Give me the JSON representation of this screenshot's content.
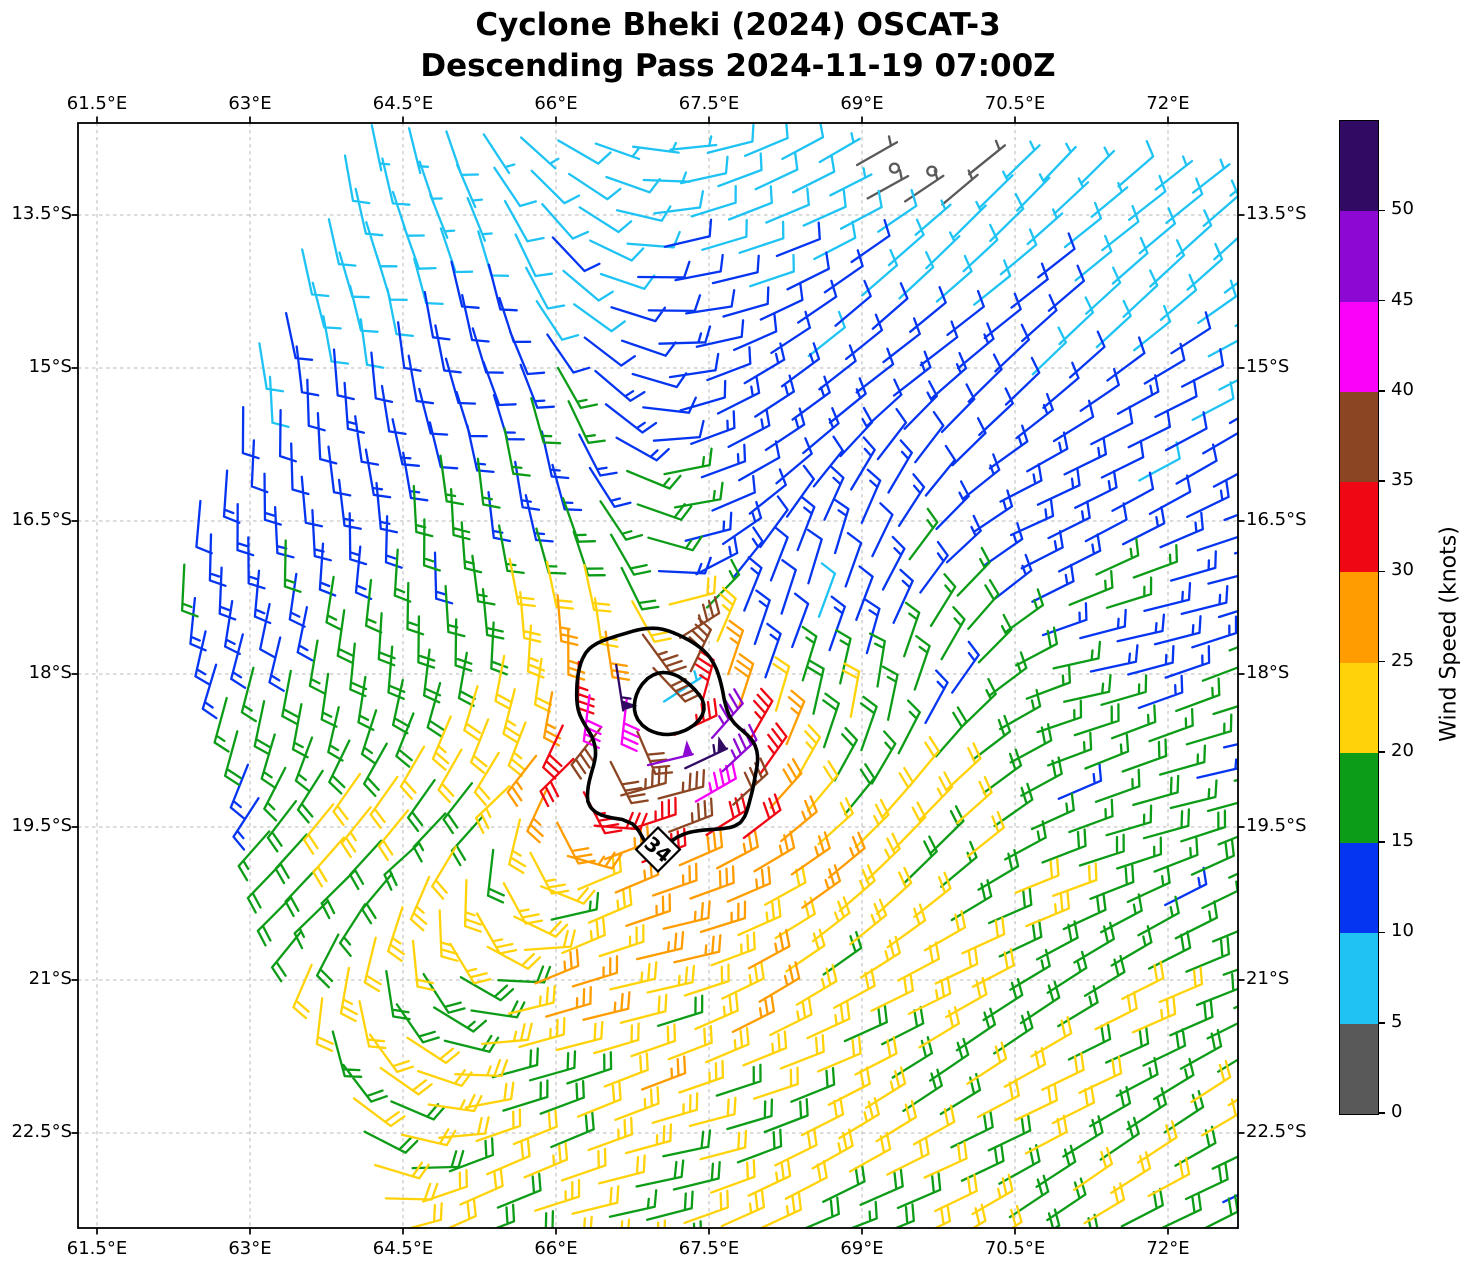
{
  "title": {
    "line1": "Cyclone Bheki (2024) OSCAT-3",
    "line2": "Descending Pass 2024-11-19 07:00Z"
  },
  "axes": {
    "lon_range": [
      61.314,
      72.686
    ],
    "lat_range_s": [
      12.598,
      23.431
    ],
    "lon_ticks": [
      {
        "value": 61.5,
        "label": "61.5°E"
      },
      {
        "value": 63.0,
        "label": "63°E"
      },
      {
        "value": 64.5,
        "label": "64.5°E"
      },
      {
        "value": 66.0,
        "label": "66°E"
      },
      {
        "value": 67.5,
        "label": "67.5°E"
      },
      {
        "value": 69.0,
        "label": "69°E"
      },
      {
        "value": 70.5,
        "label": "70.5°E"
      },
      {
        "value": 72.0,
        "label": "72°E"
      }
    ],
    "lat_ticks": [
      {
        "value": 13.5,
        "label": "13.5°S"
      },
      {
        "value": 15.0,
        "label": "15°S"
      },
      {
        "value": 16.5,
        "label": "16.5°S"
      },
      {
        "value": 18.0,
        "label": "18°S"
      },
      {
        "value": 19.5,
        "label": "19.5°S"
      },
      {
        "value": 21.0,
        "label": "21°S"
      },
      {
        "value": 22.5,
        "label": "22.5°S"
      }
    ],
    "grid": true,
    "grid_style": "dashed gray"
  },
  "colorbar": {
    "label": "Wind Speed (knots)",
    "tick_labels": [
      "0",
      "5",
      "10",
      "15",
      "20",
      "25",
      "30",
      "35",
      "40",
      "45",
      "50"
    ],
    "bins": [
      {
        "range_knots": "0-5",
        "color": "#595959"
      },
      {
        "range_knots": "5-10",
        "color": "#1fc3f3"
      },
      {
        "range_knots": "10-15",
        "color": "#0535f1"
      },
      {
        "range_knots": "15-20",
        "color": "#0d9c17"
      },
      {
        "range_knots": "20-25",
        "color": "#ffd20a"
      },
      {
        "range_knots": "25-30",
        "color": "#ff9c00"
      },
      {
        "range_knots": "30-35",
        "color": "#f00714"
      },
      {
        "range_knots": "35-40",
        "color": "#8c4522"
      },
      {
        "range_knots": "40-45",
        "color": "#fa02fa"
      },
      {
        "range_knots": "45-50",
        "color": "#8e08d4"
      },
      {
        "range_knots": "50+",
        "color": "#310a63"
      }
    ]
  },
  "contour": {
    "level": 34,
    "label": "34",
    "color": "#000000",
    "meaning": "34-knot wind radius contour"
  },
  "chart_data": {
    "type": "wind_barb_map",
    "satellite": "OSCAT-3",
    "pass": "Descending",
    "datetime_utc": "2024-11-19 07:00Z",
    "storm_name": "Bheki",
    "storm_year": 2024,
    "units": "knots",
    "barb_convention": "southern-hemisphere wind barbs; half barb = 5 kt, full barb = 10 kt, pennant = 50 kt, circle = calm",
    "wind_speed_bin_edges_knots": [
      0,
      5,
      10,
      15,
      20,
      25,
      30,
      35,
      40,
      45,
      50
    ],
    "barb_colors": [
      "#595959",
      "#1fc3f3",
      "#0535f1",
      "#0d9c17",
      "#ffd20a",
      "#ff9c00",
      "#f00714",
      "#8c4522",
      "#fa02fa",
      "#8e08d4",
      "#310a63"
    ],
    "wind_field": {
      "center_lon": 67.05,
      "center_lat_s": 18.3,
      "vmax": 48,
      "rmax": 0.55,
      "inner_exp": 0.7,
      "decay_exp": 1.05,
      "asym1_amp": 0.45,
      "asym1_phase": 245,
      "asym2_amp": 0.25,
      "asym2_phase": 300,
      "bg_base": 2.8,
      "bg_grad": 1.3,
      "bg_cap": 16,
      "far_dir": 196,
      "calm_zone": {
        "lon": 69.55,
        "lat": 12.85,
        "sigma2": 0.56,
        "damp": 0.93
      },
      "dir_table": [
        [
          0,
          258
        ],
        [
          45,
          250
        ],
        [
          90,
          188
        ],
        [
          110,
          108
        ],
        [
          140,
          95
        ],
        [
          180,
          75
        ],
        [
          210,
          38
        ],
        [
          245,
          200
        ],
        [
          270,
          196
        ],
        [
          315,
          224
        ],
        [
          360,
          258
        ]
      ]
    },
    "swath": {
      "edge_lon_at_lat": "lon_edge = 63.95 - 0.405*(lat - 12.6); no data west of this line",
      "grid_lon0": 60.9,
      "grid_lat0": 12.35,
      "dlon_col": 0.366,
      "dlat_col": 0.03,
      "dlon_row": 0.104,
      "dlat_row": 0.327,
      "n_cols": 37,
      "n_rows": 36
    },
    "contour_34kt": {
      "approx_center_lon": 67.0,
      "approx_center_lat_s": 18.4,
      "approx_radius_deg": 1.1,
      "label_pos": "southern edge of contour"
    },
    "notes": "Cyclonic (clockwise) swirl of colored wind barbs; magenta/violet 40-50 kt ring with pennant flags around a weak eye, red/orange/yellow bands outward, cyan/blue weak flow north, calm gray barbs with circles near 69.5E 13S, trade-wind yellow field in the south"
  }
}
